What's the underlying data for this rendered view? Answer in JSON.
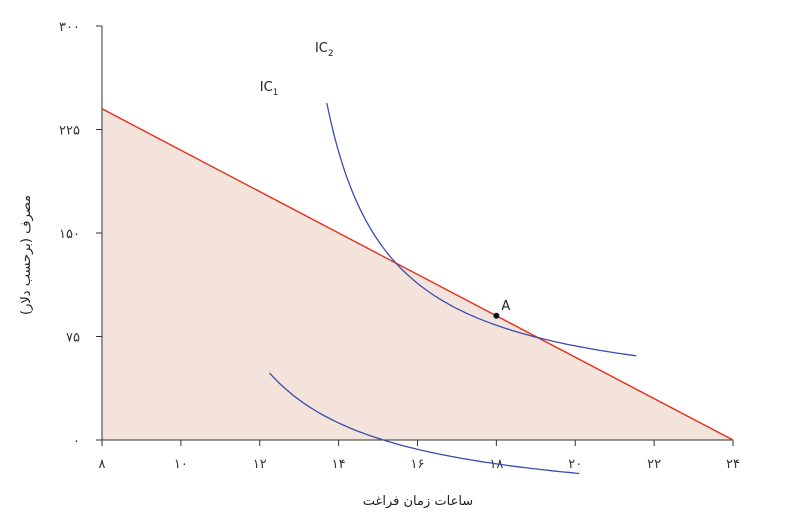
{
  "chart_data": {
    "type": "line",
    "xlabel": "ساعات زمان فراغت",
    "ylabel": "مصرف (برحسب دلار)",
    "xlim": [
      8,
      24
    ],
    "ylim": [
      0,
      300
    ],
    "x_ticks": [
      8,
      10,
      12,
      14,
      16,
      18,
      20,
      22,
      24
    ],
    "x_tick_labels": [
      "۸",
      "۱۰",
      "۱۲",
      "۱۴",
      "۱۶",
      "۱۸",
      "۲۰",
      "۲۲",
      "۲۴"
    ],
    "y_ticks": [
      0,
      75,
      150,
      225,
      300
    ],
    "y_tick_labels": [
      "۰",
      "۷۵",
      "۱۵۰",
      "۲۲۵",
      "۳۰۰"
    ],
    "grid": false,
    "colors": {
      "budget_line": "#e0301e",
      "feasible_fill": "#f3e3da",
      "indifference_curves": "#3a4bb0",
      "axis": "#333333",
      "point": "#111111"
    },
    "budget_line": {
      "points": [
        [
          8,
          240
        ],
        [
          24,
          0
        ]
      ]
    },
    "series": [
      {
        "name": "IC",
        "subscript": "1",
        "curve": "hyperbola",
        "x0": 9.04,
        "y0": -54.0,
        "k": 329,
        "x_range": [
          12.25,
          20.1
        ],
        "label_at": [
          12.0,
          253
        ]
      },
      {
        "name": "IC",
        "subscript": "2",
        "curve": "hyperbola",
        "x0": 12.13,
        "y0": 24.36,
        "k": 345,
        "x_range": [
          13.7,
          21.55
        ],
        "label_at": [
          13.4,
          281
        ]
      }
    ],
    "points": [
      {
        "label": "A",
        "x": 18,
        "y": 90
      }
    ]
  }
}
